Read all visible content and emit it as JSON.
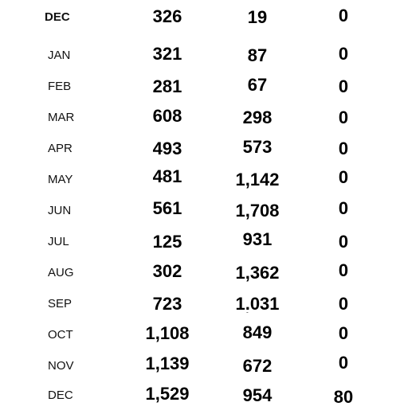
{
  "rows": [
    {
      "month": "DEC",
      "a": "326",
      "b": "19",
      "c": "0"
    },
    {
      "month": "JAN",
      "a": "321",
      "b": "87",
      "c": "0"
    },
    {
      "month": "FEB",
      "a": "281",
      "b": "67",
      "c": "0"
    },
    {
      "month": "MAR",
      "a": "608",
      "b": "298",
      "c": "0"
    },
    {
      "month": "APR",
      "a": "493",
      "b": "573",
      "c": "0"
    },
    {
      "month": "MAY",
      "a": "481",
      "b": "1,142",
      "c": "0"
    },
    {
      "month": "JUN",
      "a": "561",
      "b": "1,708",
      "c": "0"
    },
    {
      "month": "JUL",
      "a": "125",
      "b": "931",
      "c": "0"
    },
    {
      "month": "AUG",
      "a": "302",
      "b": "1,362",
      "c": "0"
    },
    {
      "month": "SEP",
      "a": "723",
      "b": "1,031",
      "c": "0"
    },
    {
      "month": "OCT",
      "a": "1,108",
      "b": "849",
      "c": "0"
    },
    {
      "month": "NOV",
      "a": "1,139",
      "b": "672",
      "c": "0"
    },
    {
      "month": "DEC",
      "a": "1,529",
      "b": "954",
      "c": "80"
    }
  ]
}
